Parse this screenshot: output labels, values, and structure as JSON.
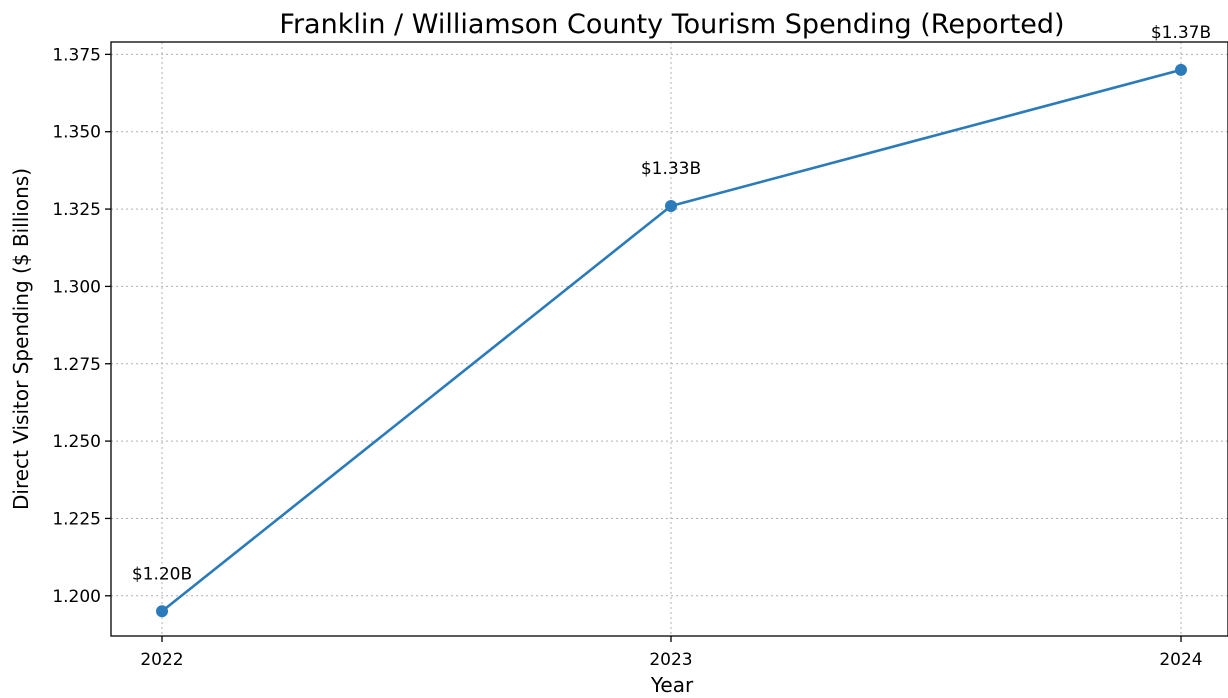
{
  "chart_data": {
    "type": "line",
    "title": "Franklin / Williamson County Tourism Spending (Reported)",
    "xlabel": "Year",
    "ylabel": "Direct Visitor Spending ($ Billions)",
    "categories": [
      "2022",
      "2023",
      "2024"
    ],
    "series": [
      {
        "values": [
          1.195,
          1.326,
          1.37
        ],
        "labels": [
          "$1.20B",
          "$1.33B",
          "$1.37B"
        ],
        "color": "#2b7bba",
        "marker": "circle"
      }
    ],
    "ylim": [
      1.187,
      1.379
    ],
    "yticks": [
      1.2,
      1.225,
      1.25,
      1.275,
      1.3,
      1.325,
      1.35,
      1.375
    ],
    "ytick_labels": [
      "1.200",
      "1.225",
      "1.250",
      "1.275",
      "1.300",
      "1.325",
      "1.350",
      "1.375"
    ],
    "grid": true,
    "grid_style": "dotted"
  }
}
